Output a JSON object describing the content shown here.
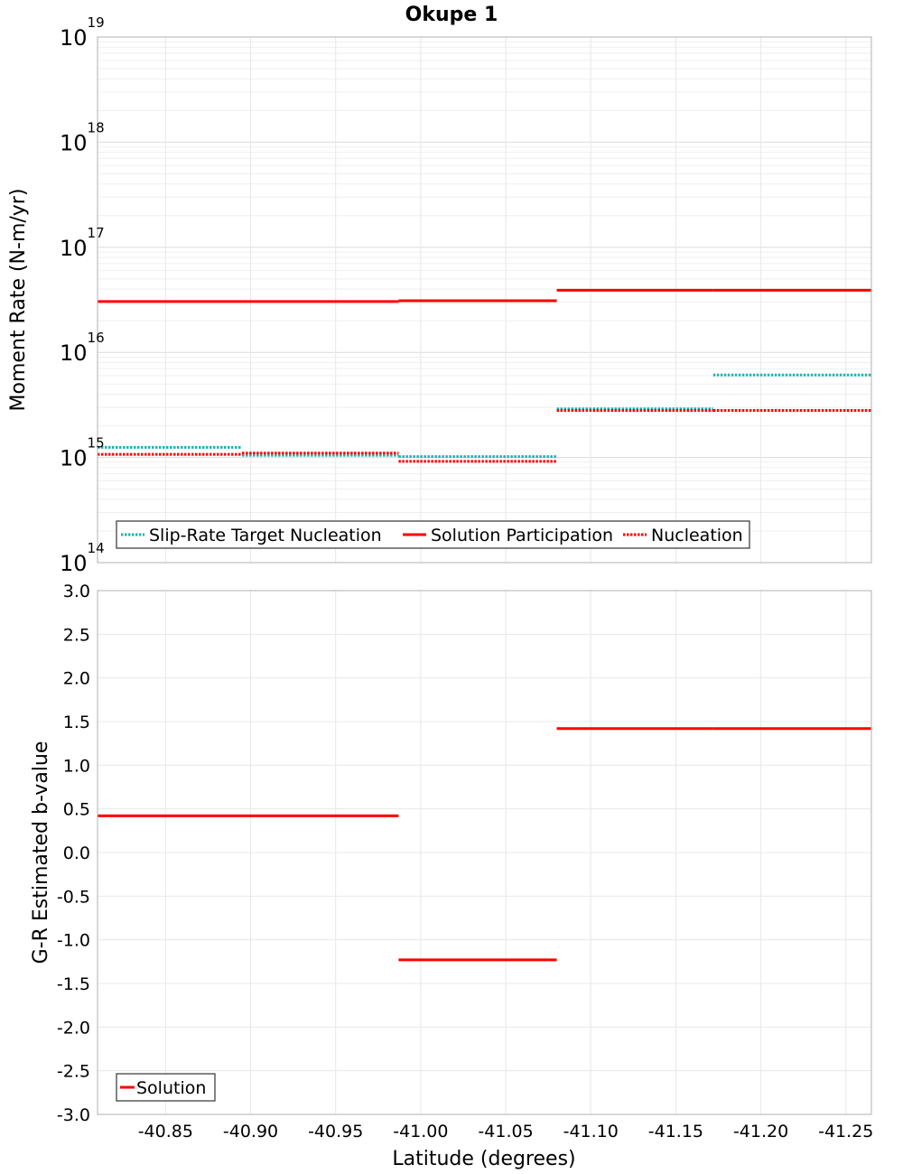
{
  "chart_data": [
    {
      "type": "line",
      "title": "Okupe 1",
      "xlabel": "Latitude (degrees)",
      "ylabel": "Moment Rate (N-m/yr)",
      "yscale": "log",
      "ylim": [
        100000000000000.0,
        1e+19
      ],
      "xlim": [
        -40.81,
        -41.265
      ],
      "x_axis_inverted": true,
      "grid": true,
      "legend_position": "bottom-left",
      "y_ticks": [
        {
          "base": "10",
          "exp": "14"
        },
        {
          "base": "10",
          "exp": "15"
        },
        {
          "base": "10",
          "exp": "16"
        },
        {
          "base": "10",
          "exp": "17"
        },
        {
          "base": "10",
          "exp": "18"
        },
        {
          "base": "10",
          "exp": "19"
        }
      ],
      "series": [
        {
          "name": "Slip-Rate Target Nucleation",
          "style": "dotted",
          "color": "#1ab3b3",
          "segments": [
            {
              "x0": -40.81,
              "x1": -40.895,
              "y": 1250000000000000.0
            },
            {
              "x0": -40.895,
              "x1": -40.987,
              "y": 1050000000000000.0
            },
            {
              "x0": -40.987,
              "x1": -41.08,
              "y": 1020000000000000.0
            },
            {
              "x0": -41.08,
              "x1": -41.172,
              "y": 2900000000000000.0
            },
            {
              "x0": -41.172,
              "x1": -41.265,
              "y": 6100000000000000.0
            }
          ]
        },
        {
          "name": "Solution Participation",
          "style": "solid",
          "color": "#ff0000",
          "segments": [
            {
              "x0": -40.81,
              "x1": -40.895,
              "y": 3.05e+16
            },
            {
              "x0": -40.895,
              "x1": -40.987,
              "y": 3.05e+16
            },
            {
              "x0": -40.987,
              "x1": -41.08,
              "y": 3.1e+16
            },
            {
              "x0": -41.08,
              "x1": -41.172,
              "y": 3.9e+16
            },
            {
              "x0": -41.172,
              "x1": -41.265,
              "y": 3.9e+16
            }
          ]
        },
        {
          "name": "Nucleation",
          "style": "dotted",
          "color": "#ff0000",
          "segments": [
            {
              "x0": -40.81,
              "x1": -40.895,
              "y": 1070000000000000.0
            },
            {
              "x0": -40.895,
              "x1": -40.987,
              "y": 1100000000000000.0
            },
            {
              "x0": -40.987,
              "x1": -41.08,
              "y": 920000000000000.0
            },
            {
              "x0": -41.08,
              "x1": -41.172,
              "y": 2800000000000000.0
            },
            {
              "x0": -41.172,
              "x1": -41.265,
              "y": 2800000000000000.0
            }
          ]
        }
      ]
    },
    {
      "type": "line",
      "xlabel": "Latitude (degrees)",
      "ylabel": "G-R Estimated b-value",
      "ylim": [
        -3.0,
        3.0
      ],
      "xlim": [
        -40.81,
        -41.265
      ],
      "x_axis_inverted": true,
      "grid": true,
      "legend_position": "bottom-left",
      "x_ticks": [
        "-40.85",
        "-40.90",
        "-40.95",
        "-41.00",
        "-41.05",
        "-41.10",
        "-41.15",
        "-41.20",
        "-41.25"
      ],
      "x_tick_values": [
        -40.85,
        -40.9,
        -40.95,
        -41.0,
        -41.05,
        -41.1,
        -41.15,
        -41.2,
        -41.25
      ],
      "y_ticks": [
        "3.0",
        "2.5",
        "2.0",
        "1.5",
        "1.0",
        "0.5",
        "0.0",
        "-0.5",
        "-1.0",
        "-1.5",
        "-2.0",
        "-2.5",
        "-3.0"
      ],
      "y_tick_values": [
        3.0,
        2.5,
        2.0,
        1.5,
        1.0,
        0.5,
        0.0,
        -0.5,
        -1.0,
        -1.5,
        -2.0,
        -2.5,
        -3.0
      ],
      "series": [
        {
          "name": "Solution",
          "style": "solid",
          "color": "#ff0000",
          "segments": [
            {
              "x0": -40.81,
              "x1": -40.895,
              "y": 0.42
            },
            {
              "x0": -40.895,
              "x1": -40.987,
              "y": 0.42
            },
            {
              "x0": -40.987,
              "x1": -41.08,
              "y": -1.23
            },
            {
              "x0": -41.08,
              "x1": -41.172,
              "y": 1.42
            },
            {
              "x0": -41.172,
              "x1": -41.265,
              "y": 1.42
            }
          ]
        }
      ]
    }
  ]
}
